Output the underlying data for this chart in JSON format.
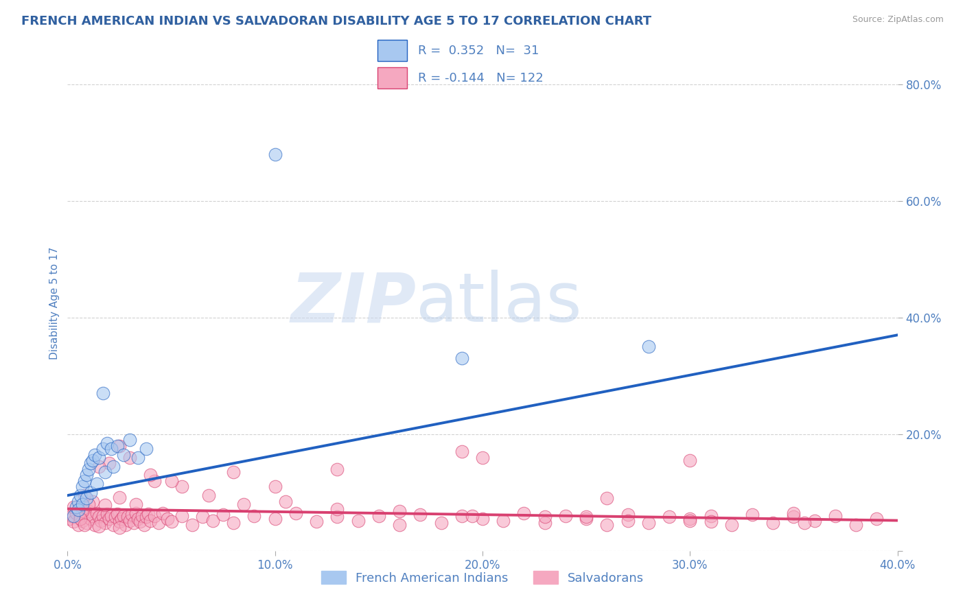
{
  "title": "FRENCH AMERICAN INDIAN VS SALVADORAN DISABILITY AGE 5 TO 17 CORRELATION CHART",
  "source": "Source: ZipAtlas.com",
  "ylabel": "Disability Age 5 to 17",
  "xlim": [
    0.0,
    0.4
  ],
  "ylim": [
    0.0,
    0.85
  ],
  "xticks": [
    0.0,
    0.1,
    0.2,
    0.3,
    0.4
  ],
  "yticks": [
    0.0,
    0.2,
    0.4,
    0.6,
    0.8
  ],
  "ytick_labels": [
    "",
    "20.0%",
    "40.0%",
    "60.0%",
    "80.0%"
  ],
  "xtick_labels": [
    "0.0%",
    "10.0%",
    "20.0%",
    "30.0%",
    "40.0%"
  ],
  "r_blue": 0.352,
  "n_blue": 31,
  "r_pink": -0.144,
  "n_pink": 122,
  "blue_color": "#A8C8F0",
  "pink_color": "#F5A8C0",
  "blue_line_color": "#2060C0",
  "pink_line_color": "#D84070",
  "legend_blue_label": "French American Indians",
  "legend_pink_label": "Salvadorans",
  "watermark_zip": "ZIP",
  "watermark_atlas": "atlas",
  "background_color": "#FFFFFF",
  "grid_color": "#CCCCCC",
  "title_color": "#3060A0",
  "axis_color": "#5080C0",
  "blue_line_start_y": 0.095,
  "blue_line_end_y": 0.37,
  "pink_line_start_y": 0.072,
  "pink_line_end_y": 0.052,
  "blue_x": [
    0.003,
    0.004,
    0.005,
    0.006,
    0.007,
    0.008,
    0.009,
    0.01,
    0.011,
    0.012,
    0.013,
    0.015,
    0.017,
    0.019,
    0.021,
    0.024,
    0.027,
    0.03,
    0.034,
    0.038,
    0.005,
    0.007,
    0.009,
    0.011,
    0.014,
    0.018,
    0.022,
    0.1,
    0.19,
    0.28,
    0.017
  ],
  "blue_y": [
    0.06,
    0.075,
    0.085,
    0.095,
    0.11,
    0.12,
    0.13,
    0.14,
    0.15,
    0.155,
    0.165,
    0.16,
    0.175,
    0.185,
    0.175,
    0.18,
    0.165,
    0.19,
    0.16,
    0.175,
    0.07,
    0.08,
    0.09,
    0.1,
    0.115,
    0.135,
    0.145,
    0.68,
    0.33,
    0.35,
    0.27
  ],
  "pink_x": [
    0.001,
    0.002,
    0.003,
    0.004,
    0.005,
    0.006,
    0.007,
    0.008,
    0.009,
    0.01,
    0.011,
    0.012,
    0.013,
    0.014,
    0.015,
    0.016,
    0.017,
    0.018,
    0.019,
    0.02,
    0.021,
    0.022,
    0.023,
    0.024,
    0.025,
    0.026,
    0.027,
    0.028,
    0.029,
    0.03,
    0.031,
    0.032,
    0.033,
    0.034,
    0.035,
    0.036,
    0.037,
    0.038,
    0.039,
    0.04,
    0.042,
    0.044,
    0.046,
    0.048,
    0.05,
    0.055,
    0.06,
    0.065,
    0.07,
    0.075,
    0.08,
    0.09,
    0.1,
    0.11,
    0.12,
    0.13,
    0.14,
    0.15,
    0.16,
    0.17,
    0.18,
    0.19,
    0.2,
    0.21,
    0.22,
    0.23,
    0.24,
    0.25,
    0.26,
    0.27,
    0.28,
    0.29,
    0.3,
    0.31,
    0.32,
    0.33,
    0.34,
    0.35,
    0.36,
    0.37,
    0.38,
    0.39,
    0.003,
    0.007,
    0.012,
    0.018,
    0.025,
    0.033,
    0.042,
    0.055,
    0.068,
    0.085,
    0.105,
    0.13,
    0.16,
    0.195,
    0.23,
    0.27,
    0.31,
    0.355,
    0.01,
    0.02,
    0.03,
    0.05,
    0.08,
    0.13,
    0.19,
    0.26,
    0.35,
    0.006,
    0.015,
    0.025,
    0.008,
    0.04,
    0.1,
    0.2,
    0.3,
    0.008,
    0.015,
    0.025,
    0.3,
    0.25
  ],
  "pink_y": [
    0.055,
    0.06,
    0.05,
    0.065,
    0.045,
    0.058,
    0.052,
    0.062,
    0.048,
    0.068,
    0.055,
    0.06,
    0.045,
    0.065,
    0.058,
    0.052,
    0.06,
    0.048,
    0.063,
    0.055,
    0.06,
    0.045,
    0.058,
    0.063,
    0.05,
    0.055,
    0.06,
    0.045,
    0.058,
    0.052,
    0.062,
    0.048,
    0.065,
    0.055,
    0.05,
    0.06,
    0.045,
    0.058,
    0.063,
    0.052,
    0.06,
    0.048,
    0.065,
    0.055,
    0.05,
    0.06,
    0.045,
    0.058,
    0.052,
    0.062,
    0.048,
    0.06,
    0.055,
    0.065,
    0.05,
    0.058,
    0.052,
    0.06,
    0.045,
    0.062,
    0.048,
    0.06,
    0.055,
    0.052,
    0.065,
    0.048,
    0.06,
    0.055,
    0.045,
    0.062,
    0.048,
    0.058,
    0.055,
    0.06,
    0.045,
    0.062,
    0.048,
    0.058,
    0.052,
    0.06,
    0.045,
    0.055,
    0.075,
    0.068,
    0.085,
    0.078,
    0.092,
    0.08,
    0.12,
    0.11,
    0.095,
    0.08,
    0.085,
    0.072,
    0.068,
    0.06,
    0.058,
    0.052,
    0.05,
    0.048,
    0.08,
    0.15,
    0.16,
    0.12,
    0.135,
    0.14,
    0.17,
    0.09,
    0.065,
    0.055,
    0.145,
    0.18,
    0.095,
    0.13,
    0.11,
    0.16,
    0.155,
    0.045,
    0.042,
    0.04,
    0.052,
    0.058
  ]
}
